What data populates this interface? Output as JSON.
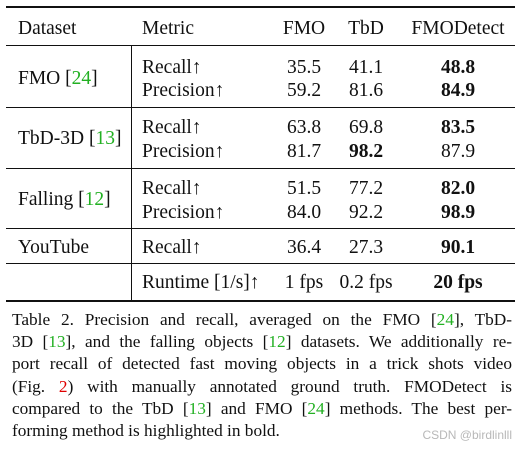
{
  "table": {
    "headers": [
      "Dataset",
      "Metric",
      "FMO",
      "TbD",
      "FMODetect"
    ],
    "groups": [
      {
        "dataset": "FMO",
        "ref": "24",
        "rows": [
          {
            "metric": "Recall↑",
            "fmo": "35.5",
            "tbd": "41.1",
            "fmodetect": "48.8",
            "best": "fmodetect"
          },
          {
            "metric": "Precision↑",
            "fmo": "59.2",
            "tbd": "81.6",
            "fmodetect": "84.9",
            "best": "fmodetect"
          }
        ]
      },
      {
        "dataset": "TbD-3D",
        "ref": "13",
        "rows": [
          {
            "metric": "Recall↑",
            "fmo": "63.8",
            "tbd": "69.8",
            "fmodetect": "83.5",
            "best": "fmodetect"
          },
          {
            "metric": "Precision↑",
            "fmo": "81.7",
            "tbd": "98.2",
            "fmodetect": "87.9",
            "best": "tbd"
          }
        ]
      },
      {
        "dataset": "Falling",
        "ref": "12",
        "rows": [
          {
            "metric": "Recall↑",
            "fmo": "51.5",
            "tbd": "77.2",
            "fmodetect": "82.0",
            "best": "fmodetect"
          },
          {
            "metric": "Precision↑",
            "fmo": "84.0",
            "tbd": "92.2",
            "fmodetect": "98.9",
            "best": "fmodetect"
          }
        ]
      },
      {
        "dataset": "YouTube",
        "ref": "",
        "rows": [
          {
            "metric": "Recall↑",
            "fmo": "36.4",
            "tbd": "27.3",
            "fmodetect": "90.1",
            "best": "fmodetect"
          }
        ]
      }
    ],
    "runtime": {
      "metric": "Runtime [1/s]↑",
      "fmo": "1 fps",
      "tbd": "0.2 fps",
      "fmodetect": "20 fps",
      "best": "fmodetect"
    }
  },
  "caption": {
    "lines": [
      [
        {
          "t": "Table 2. Precision and recall, averaged on the FMO ["
        },
        {
          "t": "24",
          "c": "ref"
        },
        {
          "t": "], TbD-"
        }
      ],
      [
        {
          "t": "3D ["
        },
        {
          "t": "13",
          "c": "ref"
        },
        {
          "t": "], and the falling objects ["
        },
        {
          "t": "12",
          "c": "ref"
        },
        {
          "t": "] datasets. We additionally re-"
        }
      ],
      [
        {
          "t": "port recall of detected fast moving objects in a trick shots video"
        }
      ],
      [
        {
          "t": "(Fig. "
        },
        {
          "t": "2",
          "c": "fig"
        },
        {
          "t": ") with manually annotated ground truth.  FMODetect is"
        }
      ],
      [
        {
          "t": "compared to the TbD ["
        },
        {
          "t": "13",
          "c": "ref"
        },
        {
          "t": "] and FMO ["
        },
        {
          "t": "24",
          "c": "ref"
        },
        {
          "t": "] methods. The best per-"
        }
      ],
      [
        {
          "t": "forming method is highlighted in bold."
        }
      ]
    ]
  },
  "watermark": "CSDN @birdlinlll"
}
